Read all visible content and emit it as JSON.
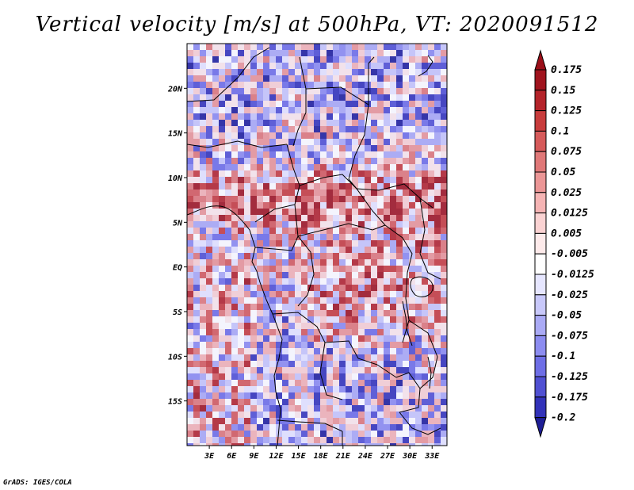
{
  "title": "Vertical velocity [m/s] at 500hPa, VT: 2020091512",
  "credit": "GrADS: IGES/COLA",
  "map": {
    "region": "Central Africa",
    "lon_range": [
      0,
      35
    ],
    "lat_range": [
      -20,
      25
    ],
    "lat_ticks": [
      {
        "value": 20,
        "label": "20N"
      },
      {
        "value": 15,
        "label": "15N"
      },
      {
        "value": 10,
        "label": "10N"
      },
      {
        "value": 5,
        "label": "5N"
      },
      {
        "value": 0,
        "label": "EQ"
      },
      {
        "value": -5,
        "label": "5S"
      },
      {
        "value": -10,
        "label": "10S"
      },
      {
        "value": -15,
        "label": "15S"
      }
    ],
    "lon_ticks": [
      {
        "value": 3,
        "label": "3E"
      },
      {
        "value": 6,
        "label": "6E"
      },
      {
        "value": 9,
        "label": "9E"
      },
      {
        "value": 12,
        "label": "12E"
      },
      {
        "value": 15,
        "label": "15E"
      },
      {
        "value": 18,
        "label": "18E"
      },
      {
        "value": 21,
        "label": "21E"
      },
      {
        "value": 24,
        "label": "24E"
      },
      {
        "value": 27,
        "label": "27E"
      },
      {
        "value": 30,
        "label": "30E"
      },
      {
        "value": 33,
        "label": "33E"
      }
    ]
  },
  "colorbar": {
    "levels": [
      {
        "label": "0.175",
        "color": "#a0141e"
      },
      {
        "label": "0.15",
        "color": "#b4232a"
      },
      {
        "label": "0.125",
        "color": "#c83c3c"
      },
      {
        "label": "0.1",
        "color": "#d65a5a"
      },
      {
        "label": "0.075",
        "color": "#e07878"
      },
      {
        "label": "0.05",
        "color": "#eb9696"
      },
      {
        "label": "0.025",
        "color": "#f5b4b4"
      },
      {
        "label": "0.0125",
        "color": "#fad2d2"
      },
      {
        "label": "0.005",
        "color": "#fdeaea"
      },
      {
        "label": "-0.005",
        "color": "#ffffff"
      },
      {
        "label": "-0.0125",
        "color": "#e6e6ff"
      },
      {
        "label": "-0.025",
        "color": "#c8c8fa"
      },
      {
        "label": "-0.05",
        "color": "#aaaaf5"
      },
      {
        "label": "-0.075",
        "color": "#8c8cf0"
      },
      {
        "label": "-0.1",
        "color": "#6e6ee6"
      },
      {
        "label": "-0.125",
        "color": "#5050d2"
      },
      {
        "label": "-0.175",
        "color": "#3232b9"
      },
      {
        "label": "-0.2",
        "color": "#1e1e9b"
      }
    ],
    "top_color": "#9b0f19",
    "bottom_color": "#1e1e96"
  }
}
